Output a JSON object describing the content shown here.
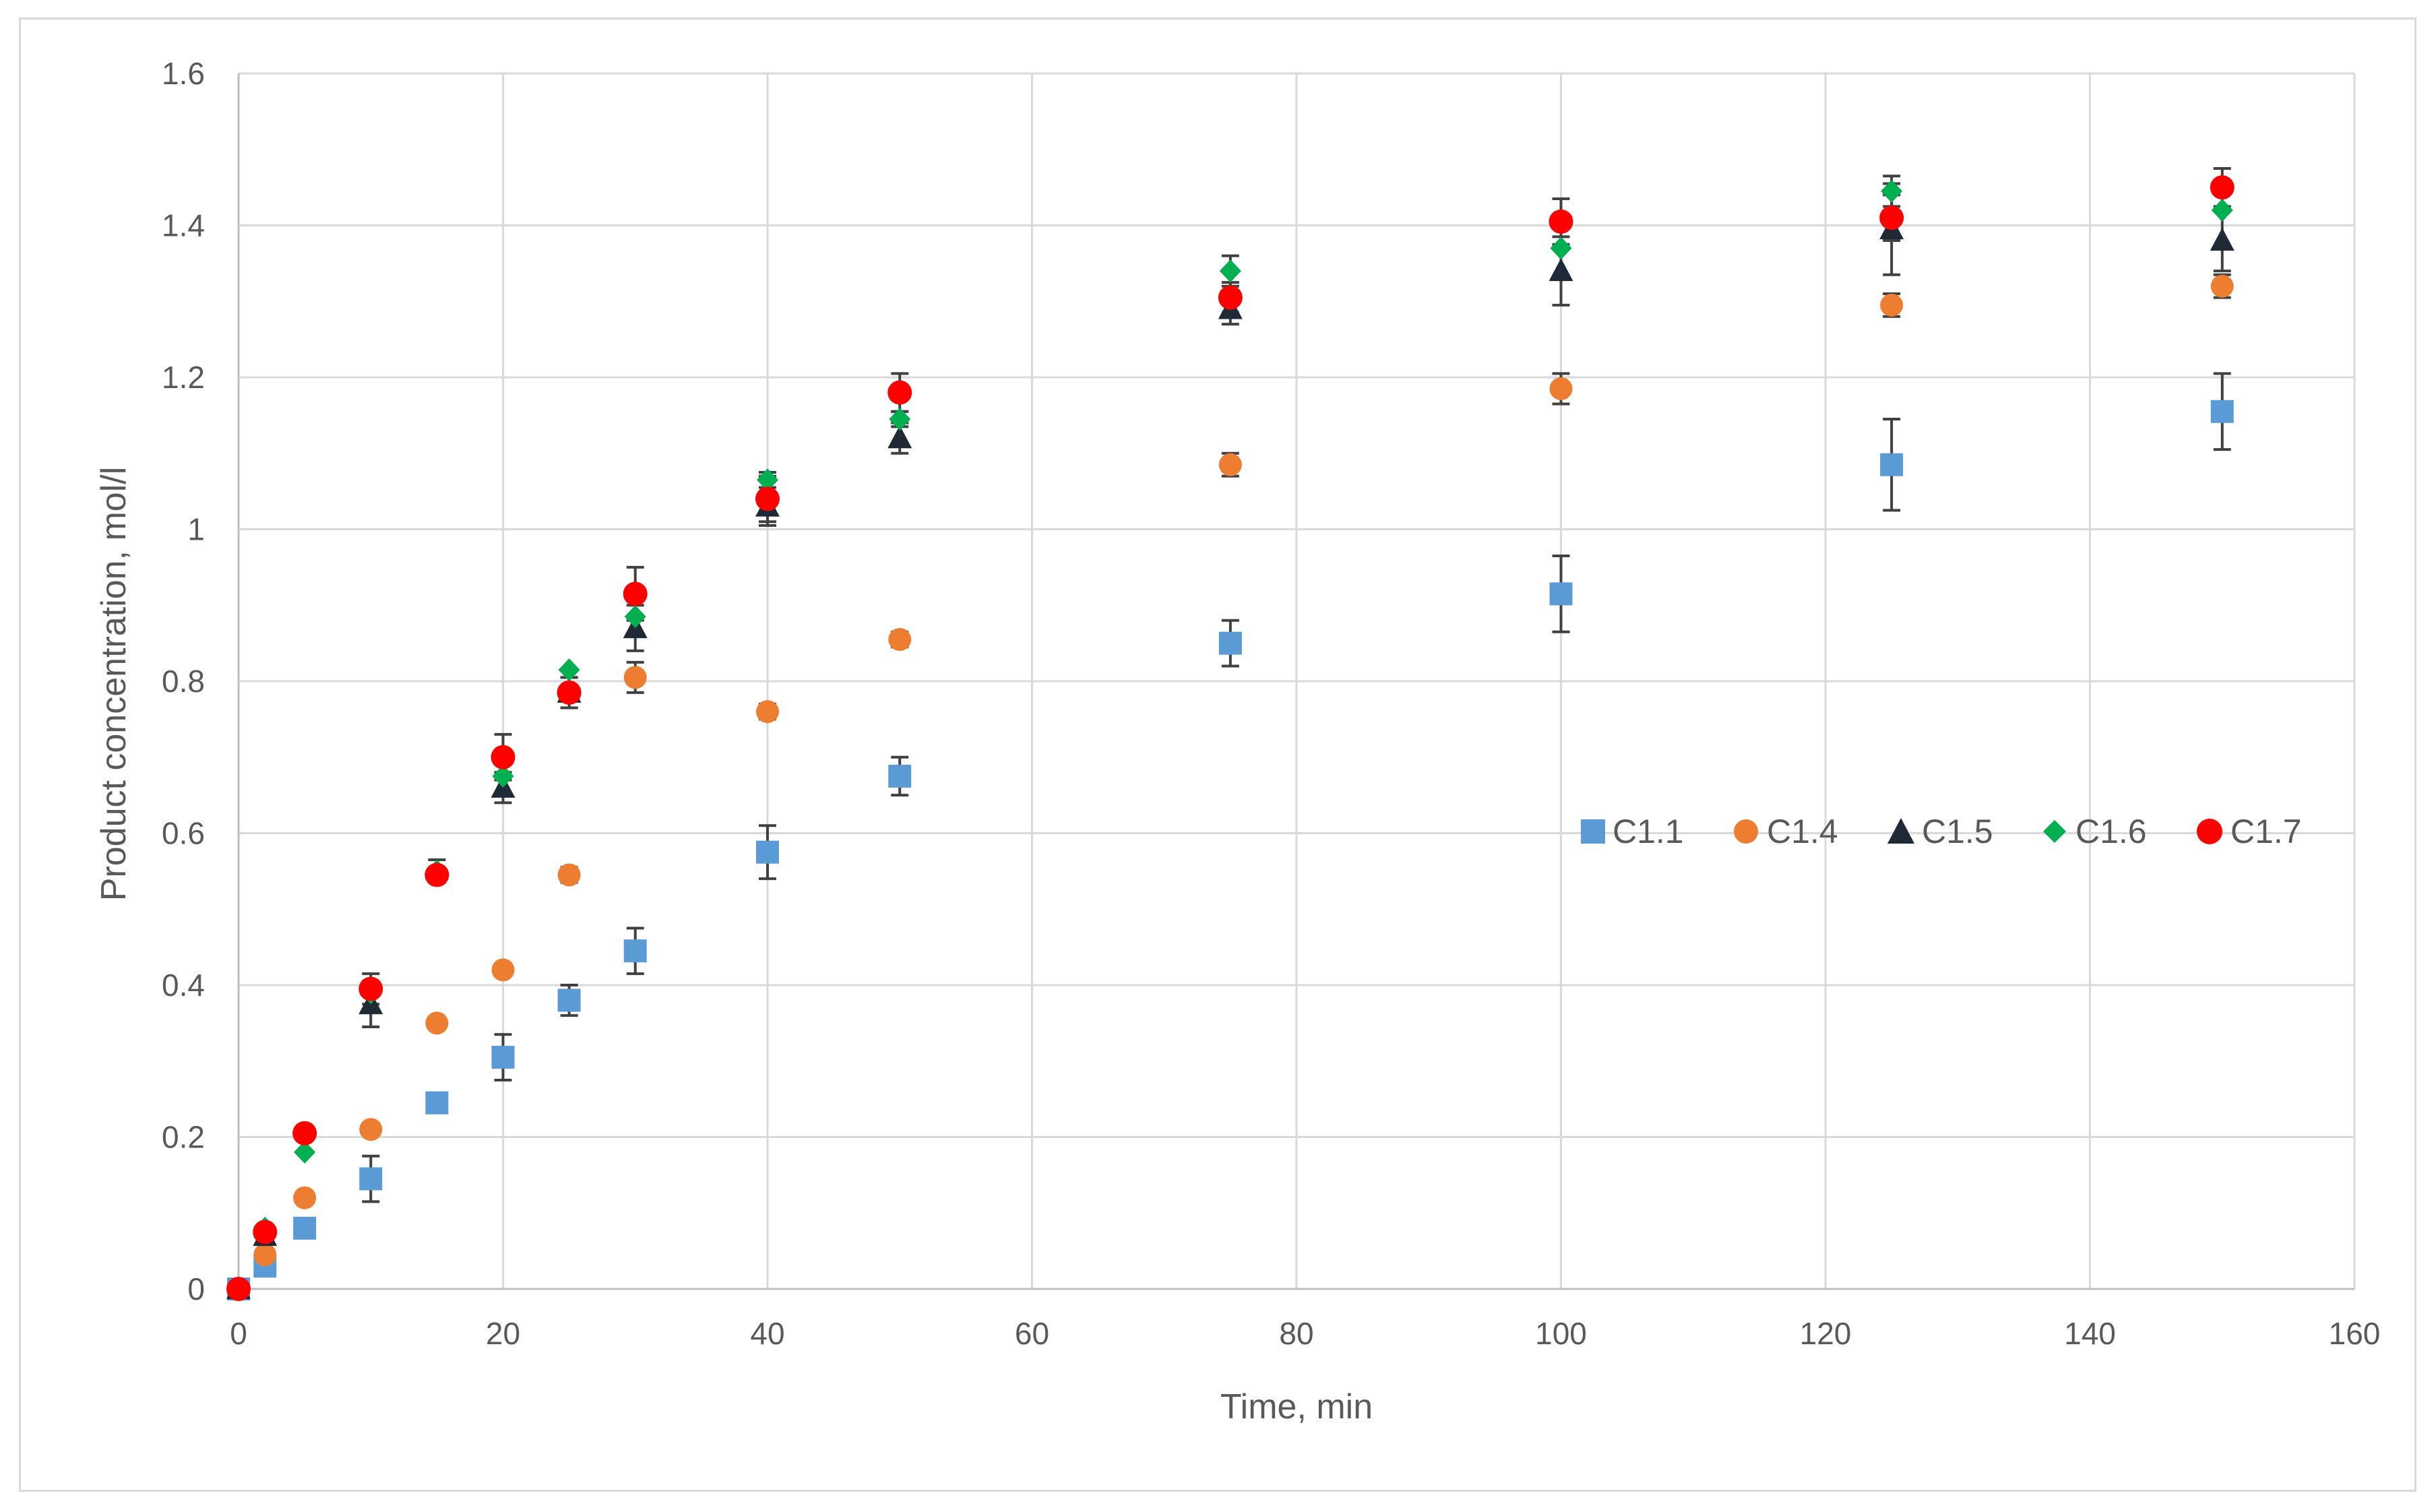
{
  "chart_data": {
    "type": "scatter",
    "title": "",
    "xlabel": "Time, min",
    "ylabel": "Product concentration, mol/l",
    "xlim": [
      0,
      160
    ],
    "ylim": [
      0,
      1.6
    ],
    "xticks": [
      0,
      20,
      40,
      60,
      80,
      100,
      120,
      140,
      160
    ],
    "yticks": [
      0,
      0.2,
      0.4,
      0.6,
      0.8,
      1,
      1.2,
      1.4,
      1.6
    ],
    "ytick_labels": [
      "0",
      "0.2",
      "0.4",
      "0.6",
      "0.8",
      "1",
      "1.2",
      "1.4",
      "1.6"
    ],
    "grid": true,
    "legend_position": "right-middle",
    "series": [
      {
        "name": "C1.1",
        "marker": "square",
        "color": "#5b9bd5",
        "x": [
          0,
          2,
          5,
          10,
          15,
          20,
          25,
          30,
          40,
          50,
          75,
          100,
          125,
          150
        ],
        "y": [
          0,
          0.03,
          0.08,
          0.145,
          0.245,
          0.305,
          0.38,
          0.445,
          0.575,
          0.675,
          0.85,
          0.915,
          1.085,
          1.155
        ],
        "err": [
          0,
          0,
          0,
          0.03,
          0,
          0.03,
          0.02,
          0.03,
          0.035,
          0.025,
          0.03,
          0.05,
          0.06,
          0.05
        ]
      },
      {
        "name": "C1.4",
        "marker": "circle",
        "color": "#ed7d31",
        "x": [
          0,
          2,
          5,
          10,
          15,
          20,
          25,
          30,
          40,
          50,
          75,
          100,
          125,
          150
        ],
        "y": [
          0,
          0.045,
          0.12,
          0.21,
          0.35,
          0.42,
          0.545,
          0.805,
          0.76,
          0.855,
          1.085,
          1.185,
          1.295,
          1.32
        ],
        "err": [
          0,
          0,
          0,
          0,
          0,
          0,
          0.01,
          0.02,
          0.01,
          0.01,
          0.015,
          0.02,
          0.015,
          0.015
        ]
      },
      {
        "name": "C1.5",
        "marker": "triangle",
        "color": "#1f2a36",
        "x": [
          0,
          2,
          10,
          20,
          25,
          30,
          40,
          50,
          75,
          100,
          125,
          150
        ],
        "y": [
          0,
          0.07,
          0.375,
          0.66,
          0.785,
          0.87,
          1.03,
          1.12,
          1.29,
          1.34,
          1.395,
          1.38
        ],
        "err": [
          0,
          0,
          0.03,
          0.02,
          0.02,
          0.03,
          0.025,
          0.02,
          0.02,
          0.045,
          0.06,
          0.04
        ]
      },
      {
        "name": "C1.6",
        "marker": "diamond",
        "color": "#00b050",
        "x": [
          0,
          2,
          5,
          10,
          15,
          20,
          25,
          30,
          40,
          50,
          75,
          100,
          125,
          150
        ],
        "y": [
          0,
          0.08,
          0.18,
          0.39,
          0.55,
          0.675,
          0.815,
          0.885,
          1.065,
          1.145,
          1.34,
          1.37,
          1.445,
          1.42
        ],
        "err": [
          0,
          0,
          0,
          0,
          0.015,
          0,
          0,
          0,
          0.01,
          0.01,
          0.02,
          0,
          0.02,
          0
        ]
      },
      {
        "name": "C1.7",
        "marker": "circle",
        "color": "#ff0000",
        "x": [
          0,
          2,
          5,
          10,
          15,
          20,
          25,
          30,
          40,
          50,
          75,
          100,
          125,
          150
        ],
        "y": [
          0,
          0.075,
          0.205,
          0.395,
          0.545,
          0.7,
          0.785,
          0.915,
          1.04,
          1.18,
          1.305,
          1.405,
          1.41,
          1.45
        ],
        "err": [
          0,
          0,
          0,
          0.02,
          0,
          0.03,
          0.02,
          0.035,
          0.03,
          0.025,
          0.02,
          0.03,
          0.03,
          0.025
        ]
      }
    ]
  }
}
